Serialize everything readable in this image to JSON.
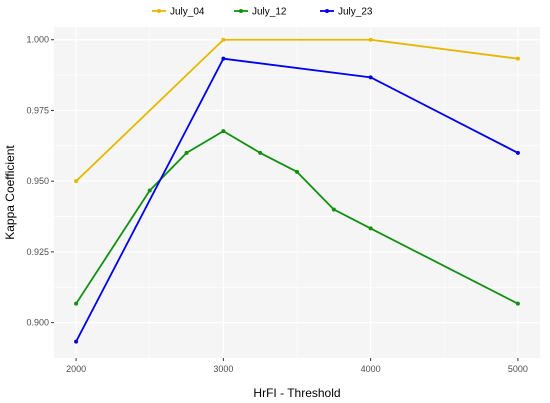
{
  "chart_data": {
    "type": "line",
    "title": "",
    "xlabel": "HrFI - Threshold",
    "ylabel": "Kappa Coefficient",
    "xlim": [
      1850,
      5150
    ],
    "ylim": [
      0.8875,
      1.0045
    ],
    "x_ticks": [
      2000,
      3000,
      4000,
      5000
    ],
    "x_tick_labels": [
      "2000",
      "3000",
      "4000",
      "5000"
    ],
    "y_ticks": [
      0.9,
      0.925,
      0.95,
      0.975,
      1.0
    ],
    "y_tick_labels": [
      "0.900",
      "0.925",
      "0.950",
      "0.975",
      "1.000"
    ],
    "grid": true,
    "legend_position": "top",
    "background": "#f5f5f5",
    "grid_color": "#ffffff",
    "series": [
      {
        "name": "July_04",
        "color": "#e6b800",
        "points": [
          [
            2000,
            0.95
          ],
          [
            3000,
            1.0
          ],
          [
            4000,
            1.0
          ],
          [
            5000,
            0.9933
          ]
        ]
      },
      {
        "name": "July_12",
        "color": "#109010",
        "points": [
          [
            2000,
            0.9067
          ],
          [
            2500,
            0.9467
          ],
          [
            2750,
            0.96
          ],
          [
            3000,
            0.9677
          ],
          [
            3250,
            0.96
          ],
          [
            3500,
            0.9533
          ],
          [
            3750,
            0.94
          ],
          [
            4000,
            0.9333
          ],
          [
            5000,
            0.9067
          ]
        ]
      },
      {
        "name": "July_23",
        "color": "#0000ee",
        "points": [
          [
            2000,
            0.8933
          ],
          [
            3000,
            0.9933
          ],
          [
            4000,
            0.9867
          ],
          [
            5000,
            0.96
          ]
        ]
      }
    ]
  }
}
